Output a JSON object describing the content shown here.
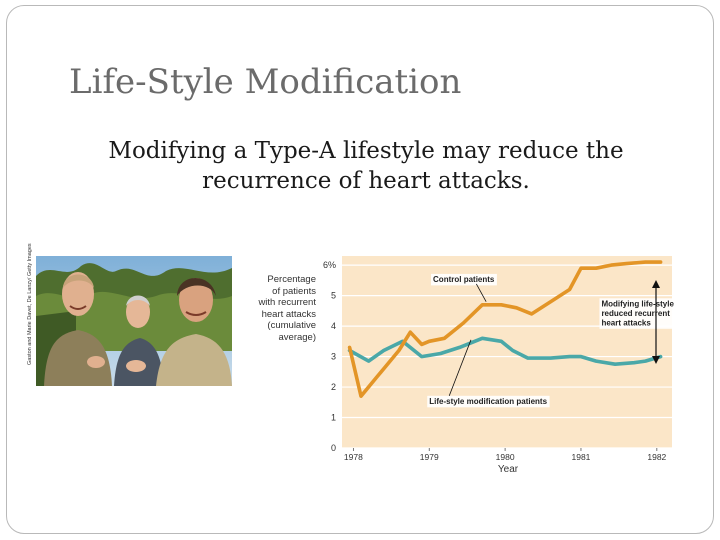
{
  "slide": {
    "title": "Life-Style Modification",
    "subtitle": "Modifying a Type-A lifestyle may reduce the recurrence of heart attacks."
  },
  "photo": {
    "credit": "Gaston and Marie Davet, De Lanzy/ Getty Images",
    "description_icon": "photo-of-three-smiling-men"
  },
  "chart_data": {
    "type": "line",
    "ylabel": "Percentage\nof patients\nwith recurrent\nheart attacks\n(cumulative\naverage)",
    "xlabel": "Year",
    "y_ticks": [
      "0",
      "1",
      "2",
      "3",
      "4",
      "5",
      "6%"
    ],
    "x_ticks": [
      "1978",
      "1979",
      "1980",
      "1981",
      "1982"
    ],
    "ylim": [
      0,
      6.3
    ],
    "xlim": [
      1977.85,
      1982.2
    ],
    "grid": "horizontal",
    "series": [
      {
        "name": "Control patients",
        "color": "#e39527",
        "x": [
          1977.95,
          1978.1,
          1978.3,
          1978.6,
          1978.75,
          1978.9,
          1979.0,
          1979.2,
          1979.45,
          1979.7,
          1979.95,
          1980.15,
          1980.35,
          1980.6,
          1980.85,
          1981.0,
          1981.2,
          1981.4,
          1981.6,
          1981.85,
          1982.05
        ],
        "y": [
          3.3,
          1.7,
          2.3,
          3.2,
          3.8,
          3.4,
          3.5,
          3.6,
          4.1,
          4.7,
          4.7,
          4.6,
          4.4,
          4.8,
          5.2,
          5.9,
          5.9,
          6.0,
          6.05,
          6.1,
          6.1
        ]
      },
      {
        "name": "Life-style modification patients",
        "color": "#4aa8a8",
        "x": [
          1977.95,
          1978.2,
          1978.4,
          1978.65,
          1978.9,
          1979.15,
          1979.4,
          1979.7,
          1979.95,
          1980.1,
          1980.3,
          1980.6,
          1980.85,
          1981.0,
          1981.2,
          1981.45,
          1981.7,
          1981.85,
          1982.05
        ],
        "y": [
          3.2,
          2.85,
          3.2,
          3.5,
          3.0,
          3.1,
          3.3,
          3.6,
          3.5,
          3.2,
          2.95,
          2.95,
          3.0,
          3.0,
          2.85,
          2.75,
          2.8,
          2.85,
          3.0
        ]
      }
    ],
    "annotations": [
      {
        "text": "Control patients",
        "x": 1979.05,
        "y": 5.45
      },
      {
        "text": "Life-style modification patients",
        "x": 1979.0,
        "y": 1.45
      },
      {
        "text": "Modifying life-style\nreduced recurrent\nheart attacks",
        "x": 1981.27,
        "y": 4.65
      }
    ]
  }
}
